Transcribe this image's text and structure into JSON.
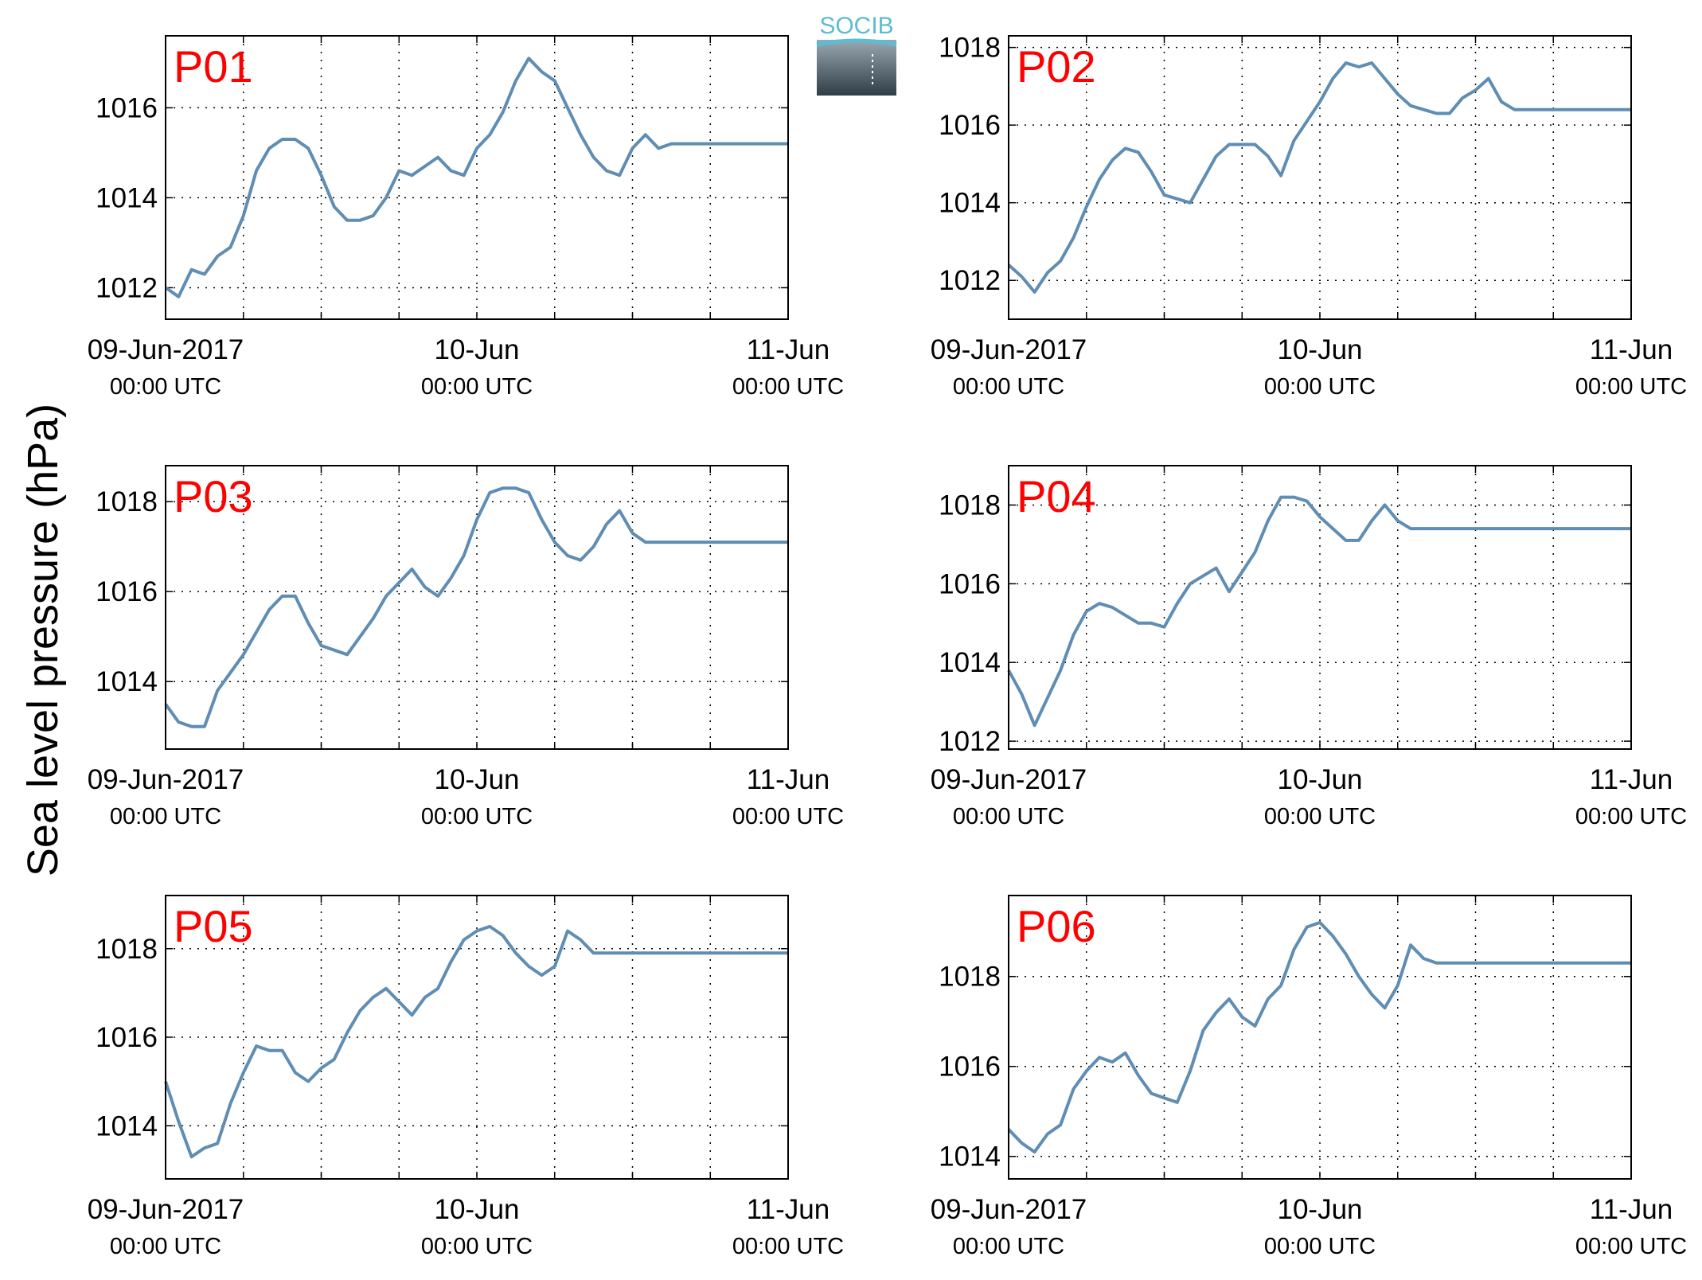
{
  "figure": {
    "ylabel": "Sea level pressure (hPa)",
    "logo_text": "SOCIB",
    "colors": {
      "line": "#5f8db3",
      "title": "#ff0000",
      "logo": "#5bbcd3"
    }
  },
  "chart_data": [
    {
      "type": "line",
      "title": "P01",
      "ylim": [
        1011.3,
        1017.6
      ],
      "yticks": [
        1012,
        1014,
        1016
      ],
      "ytick_labels": [
        "1012",
        "1014",
        "1016"
      ],
      "xlim": [
        "2017-06-09T00:00",
        "2017-06-11T00:00"
      ],
      "xticks": [
        {
          "main": "09-Jun-2017",
          "sub": "00:00 UTC"
        },
        {
          "main": "10-Jun",
          "sub": "00:00 UTC"
        },
        {
          "main": "11-Jun",
          "sub": "00:00 UTC"
        }
      ],
      "grid": true,
      "series": [
        {
          "x_hours": [
            0,
            1,
            2,
            3,
            4,
            5,
            6,
            7,
            8,
            9,
            10,
            11,
            12,
            13,
            14,
            15,
            16,
            17,
            18,
            19,
            20,
            21,
            22,
            23,
            24,
            25,
            26,
            27,
            28,
            29,
            30,
            31,
            32,
            33,
            34,
            35,
            36,
            37,
            38,
            39,
            40,
            41,
            42,
            43,
            44,
            45,
            46,
            47,
            48
          ],
          "values": [
            1012.0,
            1011.8,
            1012.4,
            1012.3,
            1012.7,
            1012.9,
            1013.6,
            1014.6,
            1015.1,
            1015.3,
            1015.3,
            1015.1,
            1014.5,
            1013.8,
            1013.5,
            1013.5,
            1013.6,
            1014.0,
            1014.6,
            1014.5,
            1014.7,
            1014.9,
            1014.6,
            1014.5,
            1015.1,
            1015.4,
            1015.9,
            1016.6,
            1017.1,
            1016.8,
            1016.6,
            1016.0,
            1015.4,
            1014.9,
            1014.6,
            1014.5,
            1015.1,
            1015.4,
            1015.1,
            1015.2,
            1015.2,
            1015.2,
            1015.2,
            1015.2,
            1015.2,
            1015.2,
            1015.2,
            1015.2,
            1015.2
          ]
        }
      ]
    },
    {
      "type": "line",
      "title": "P02",
      "ylim": [
        1011.0,
        1018.3
      ],
      "yticks": [
        1012,
        1014,
        1016,
        1018
      ],
      "ytick_labels": [
        "1012",
        "1014",
        "1016",
        "1018"
      ],
      "xlim": [
        "2017-06-09T00:00",
        "2017-06-11T00:00"
      ],
      "xticks": [
        {
          "main": "09-Jun-2017",
          "sub": "00:00 UTC"
        },
        {
          "main": "10-Jun",
          "sub": "00:00 UTC"
        },
        {
          "main": "11-Jun",
          "sub": "00:00 UTC"
        }
      ],
      "grid": true,
      "series": [
        {
          "x_hours": [
            0,
            1,
            2,
            3,
            4,
            5,
            6,
            7,
            8,
            9,
            10,
            11,
            12,
            13,
            14,
            15,
            16,
            17,
            18,
            19,
            20,
            21,
            22,
            23,
            24,
            25,
            26,
            27,
            28,
            29,
            30,
            31,
            32,
            33,
            34,
            35,
            36,
            37,
            38,
            39,
            40,
            41,
            42,
            43,
            44,
            45,
            46,
            47,
            48
          ],
          "values": [
            1012.4,
            1012.1,
            1011.7,
            1012.2,
            1012.5,
            1013.1,
            1013.9,
            1014.6,
            1015.1,
            1015.4,
            1015.3,
            1014.8,
            1014.2,
            1014.1,
            1014.0,
            1014.6,
            1015.2,
            1015.5,
            1015.5,
            1015.5,
            1015.2,
            1014.7,
            1015.6,
            1016.1,
            1016.6,
            1017.2,
            1017.6,
            1017.5,
            1017.6,
            1017.2,
            1016.8,
            1016.5,
            1016.4,
            1016.3,
            1016.3,
            1016.7,
            1016.9,
            1017.2,
            1016.6,
            1016.4,
            1016.4,
            1016.4,
            1016.4,
            1016.4,
            1016.4,
            1016.4,
            1016.4,
            1016.4,
            1016.4
          ]
        }
      ]
    },
    {
      "type": "line",
      "title": "P03",
      "ylim": [
        1012.5,
        1018.8
      ],
      "yticks": [
        1014,
        1016,
        1018
      ],
      "ytick_labels": [
        "1014",
        "1016",
        "1018"
      ],
      "xlim": [
        "2017-06-09T00:00",
        "2017-06-11T00:00"
      ],
      "xticks": [
        {
          "main": "09-Jun-2017",
          "sub": "00:00 UTC"
        },
        {
          "main": "10-Jun",
          "sub": "00:00 UTC"
        },
        {
          "main": "11-Jun",
          "sub": "00:00 UTC"
        }
      ],
      "grid": true,
      "series": [
        {
          "x_hours": [
            0,
            1,
            2,
            3,
            4,
            5,
            6,
            7,
            8,
            9,
            10,
            11,
            12,
            13,
            14,
            15,
            16,
            17,
            18,
            19,
            20,
            21,
            22,
            23,
            24,
            25,
            26,
            27,
            28,
            29,
            30,
            31,
            32,
            33,
            34,
            35,
            36,
            37,
            38,
            39,
            40,
            41,
            42,
            43,
            44,
            45,
            46,
            47,
            48
          ],
          "values": [
            1013.5,
            1013.1,
            1013.0,
            1013.0,
            1013.8,
            1014.2,
            1014.6,
            1015.1,
            1015.6,
            1015.9,
            1015.9,
            1015.3,
            1014.8,
            1014.7,
            1014.6,
            1015.0,
            1015.4,
            1015.9,
            1016.2,
            1016.5,
            1016.1,
            1015.9,
            1016.3,
            1016.8,
            1017.6,
            1018.2,
            1018.3,
            1018.3,
            1018.2,
            1017.6,
            1017.1,
            1016.8,
            1016.7,
            1017.0,
            1017.5,
            1017.8,
            1017.3,
            1017.1,
            1017.1,
            1017.1,
            1017.1,
            1017.1,
            1017.1,
            1017.1,
            1017.1,
            1017.1,
            1017.1,
            1017.1,
            1017.1
          ]
        }
      ]
    },
    {
      "type": "line",
      "title": "P04",
      "ylim": [
        1011.8,
        1019.0
      ],
      "yticks": [
        1012,
        1014,
        1016,
        1018
      ],
      "ytick_labels": [
        "1012",
        "1014",
        "1016",
        "1018"
      ],
      "xlim": [
        "2017-06-09T00:00",
        "2017-06-11T00:00"
      ],
      "xticks": [
        {
          "main": "09-Jun-2017",
          "sub": "00:00 UTC"
        },
        {
          "main": "10-Jun",
          "sub": "00:00 UTC"
        },
        {
          "main": "11-Jun",
          "sub": "00:00 UTC"
        }
      ],
      "grid": true,
      "series": [
        {
          "x_hours": [
            0,
            1,
            2,
            3,
            4,
            5,
            6,
            7,
            8,
            9,
            10,
            11,
            12,
            13,
            14,
            15,
            16,
            17,
            18,
            19,
            20,
            21,
            22,
            23,
            24,
            25,
            26,
            27,
            28,
            29,
            30,
            31,
            32,
            33,
            34,
            35,
            36,
            37,
            38,
            39,
            40,
            41,
            42,
            43,
            44,
            45,
            46,
            47,
            48
          ],
          "values": [
            1013.8,
            1013.2,
            1012.4,
            1013.1,
            1013.8,
            1014.7,
            1015.3,
            1015.5,
            1015.4,
            1015.2,
            1015.0,
            1015.0,
            1014.9,
            1015.5,
            1016.0,
            1016.2,
            1016.4,
            1015.8,
            1016.3,
            1016.8,
            1017.6,
            1018.2,
            1018.2,
            1018.1,
            1017.7,
            1017.4,
            1017.1,
            1017.1,
            1017.6,
            1018.0,
            1017.6,
            1017.4,
            1017.4,
            1017.4,
            1017.4,
            1017.4,
            1017.4,
            1017.4,
            1017.4,
            1017.4,
            1017.4,
            1017.4,
            1017.4,
            1017.4,
            1017.4,
            1017.4,
            1017.4,
            1017.4,
            1017.4
          ]
        }
      ]
    },
    {
      "type": "line",
      "title": "P05",
      "ylim": [
        1012.8,
        1019.2
      ],
      "yticks": [
        1014,
        1016,
        1018
      ],
      "ytick_labels": [
        "1014",
        "1016",
        "1018"
      ],
      "xlim": [
        "2017-06-09T00:00",
        "2017-06-11T00:00"
      ],
      "xticks": [
        {
          "main": "09-Jun-2017",
          "sub": "00:00 UTC"
        },
        {
          "main": "10-Jun",
          "sub": "00:00 UTC"
        },
        {
          "main": "11-Jun",
          "sub": "00:00 UTC"
        }
      ],
      "grid": true,
      "series": [
        {
          "x_hours": [
            0,
            1,
            2,
            3,
            4,
            5,
            6,
            7,
            8,
            9,
            10,
            11,
            12,
            13,
            14,
            15,
            16,
            17,
            18,
            19,
            20,
            21,
            22,
            23,
            24,
            25,
            26,
            27,
            28,
            29,
            30,
            31,
            32,
            33,
            34,
            35,
            36,
            37,
            38,
            39,
            40,
            41,
            42,
            43,
            44,
            45,
            46,
            47,
            48
          ],
          "values": [
            1015.0,
            1014.1,
            1013.3,
            1013.5,
            1013.6,
            1014.5,
            1015.2,
            1015.8,
            1015.7,
            1015.7,
            1015.2,
            1015.0,
            1015.3,
            1015.5,
            1016.1,
            1016.6,
            1016.9,
            1017.1,
            1016.8,
            1016.5,
            1016.9,
            1017.1,
            1017.7,
            1018.2,
            1018.4,
            1018.5,
            1018.3,
            1017.9,
            1017.6,
            1017.4,
            1017.6,
            1018.4,
            1018.2,
            1017.9,
            1017.9,
            1017.9,
            1017.9,
            1017.9,
            1017.9,
            1017.9,
            1017.9,
            1017.9,
            1017.9,
            1017.9,
            1017.9,
            1017.9,
            1017.9,
            1017.9,
            1017.9
          ]
        }
      ]
    },
    {
      "type": "line",
      "title": "P06",
      "ylim": [
        1013.5,
        1019.8
      ],
      "yticks": [
        1014,
        1016,
        1018
      ],
      "ytick_labels": [
        "1014",
        "1016",
        "1018"
      ],
      "xlim": [
        "2017-06-09T00:00",
        "2017-06-11T00:00"
      ],
      "xticks": [
        {
          "main": "09-Jun-2017",
          "sub": "00:00 UTC"
        },
        {
          "main": "10-Jun",
          "sub": "00:00 UTC"
        },
        {
          "main": "11-Jun",
          "sub": "00:00 UTC"
        }
      ],
      "grid": true,
      "series": [
        {
          "x_hours": [
            0,
            1,
            2,
            3,
            4,
            5,
            6,
            7,
            8,
            9,
            10,
            11,
            12,
            13,
            14,
            15,
            16,
            17,
            18,
            19,
            20,
            21,
            22,
            23,
            24,
            25,
            26,
            27,
            28,
            29,
            30,
            31,
            32,
            33,
            34,
            35,
            36,
            37,
            38,
            39,
            40,
            41,
            42,
            43,
            44,
            45,
            46,
            47,
            48
          ],
          "values": [
            1014.6,
            1014.3,
            1014.1,
            1014.5,
            1014.7,
            1015.5,
            1015.9,
            1016.2,
            1016.1,
            1016.3,
            1015.8,
            1015.4,
            1015.3,
            1015.2,
            1015.9,
            1016.8,
            1017.2,
            1017.5,
            1017.1,
            1016.9,
            1017.5,
            1017.8,
            1018.6,
            1019.1,
            1019.2,
            1018.9,
            1018.5,
            1018.0,
            1017.6,
            1017.3,
            1017.8,
            1018.7,
            1018.4,
            1018.3,
            1018.3,
            1018.3,
            1018.3,
            1018.3,
            1018.3,
            1018.3,
            1018.3,
            1018.3,
            1018.3,
            1018.3,
            1018.3,
            1018.3,
            1018.3,
            1018.3,
            1018.3
          ]
        }
      ]
    }
  ]
}
